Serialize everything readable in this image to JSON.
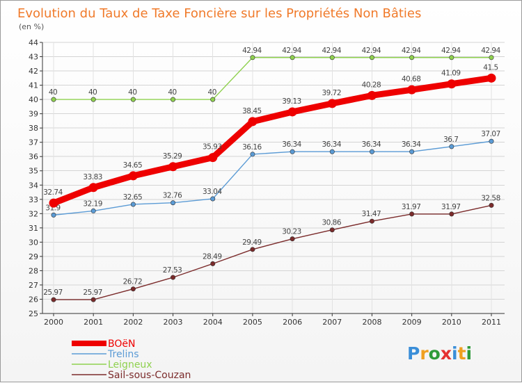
{
  "chart_data": {
    "type": "line",
    "title": "Evolution du Taux de Taxe Foncière sur les Propriétés Non Bâties",
    "subtitle": "(en %)",
    "xlabel": "",
    "ylabel": "",
    "ylim": [
      25,
      44
    ],
    "yticks": [
      25,
      26,
      27,
      28,
      29,
      30,
      31,
      32,
      33,
      34,
      35,
      36,
      37,
      38,
      39,
      40,
      41,
      42,
      43,
      44
    ],
    "x": [
      "2000",
      "2001",
      "2002",
      "2003",
      "2004",
      "2005",
      "2006",
      "2007",
      "2008",
      "2009",
      "2010",
      "2011"
    ],
    "grid": true,
    "legend": "bottom-left",
    "series": [
      {
        "name": "Leigneux",
        "color": "#8fd14f",
        "values": [
          40,
          40,
          40,
          40,
          40,
          42.94,
          42.94,
          42.94,
          42.94,
          42.94,
          42.94,
          42.94
        ],
        "labels": [
          "40",
          "40",
          "40",
          "40",
          "40",
          "42.94",
          "42.94",
          "42.94",
          "42.94",
          "42.94",
          "42.94",
          "42.94"
        ]
      },
      {
        "name": "Trelins",
        "color": "#5b9bd5",
        "values": [
          31.9,
          32.19,
          32.65,
          32.76,
          33.04,
          36.16,
          36.34,
          36.34,
          36.34,
          36.34,
          36.7,
          37.07
        ],
        "labels": [
          "31.9",
          "32.19",
          "32.65",
          "32.76",
          "33.04",
          "36.16",
          "36.34",
          "36.34",
          "36.34",
          "36.34",
          "36.7",
          "37.07"
        ]
      },
      {
        "name": "Sail-sous-Couzan",
        "color": "#7b2b2b",
        "values": [
          25.97,
          25.97,
          26.72,
          27.53,
          28.49,
          29.49,
          30.23,
          30.86,
          31.47,
          31.97,
          31.97,
          32.58
        ],
        "labels": [
          "25.97",
          "25.97",
          "26.72",
          "27.53",
          "28.49",
          "29.49",
          "30.23",
          "30.86",
          "31.47",
          "31.97",
          "31.97",
          "32.58"
        ]
      },
      {
        "name": "BOëN",
        "color": "#ee0000",
        "values": [
          32.74,
          33.83,
          34.65,
          35.29,
          35.93,
          38.45,
          39.13,
          39.72,
          40.28,
          40.68,
          41.09,
          41.5
        ],
        "labels": [
          "32.74",
          "33.83",
          "34.65",
          "35.29",
          "35.93",
          "38.45",
          "39.13",
          "39.72",
          "40.28",
          "40.68",
          "41.09",
          "41.5"
        ]
      }
    ],
    "legend_order": [
      "BOëN",
      "Trelins",
      "Leigneux",
      "Sail-sous-Couzan"
    ]
  },
  "branding": {
    "logo_text": "Proxiti",
    "logo_letters": [
      "P",
      "r",
      "o",
      "x",
      "i",
      "t",
      "i"
    ],
    "logo_colors": [
      "#3a8ed8",
      "#f0a020",
      "#2f9a3a",
      "#e53030",
      "#3a8ed8",
      "#f0a020",
      "#2f9a3a"
    ]
  }
}
